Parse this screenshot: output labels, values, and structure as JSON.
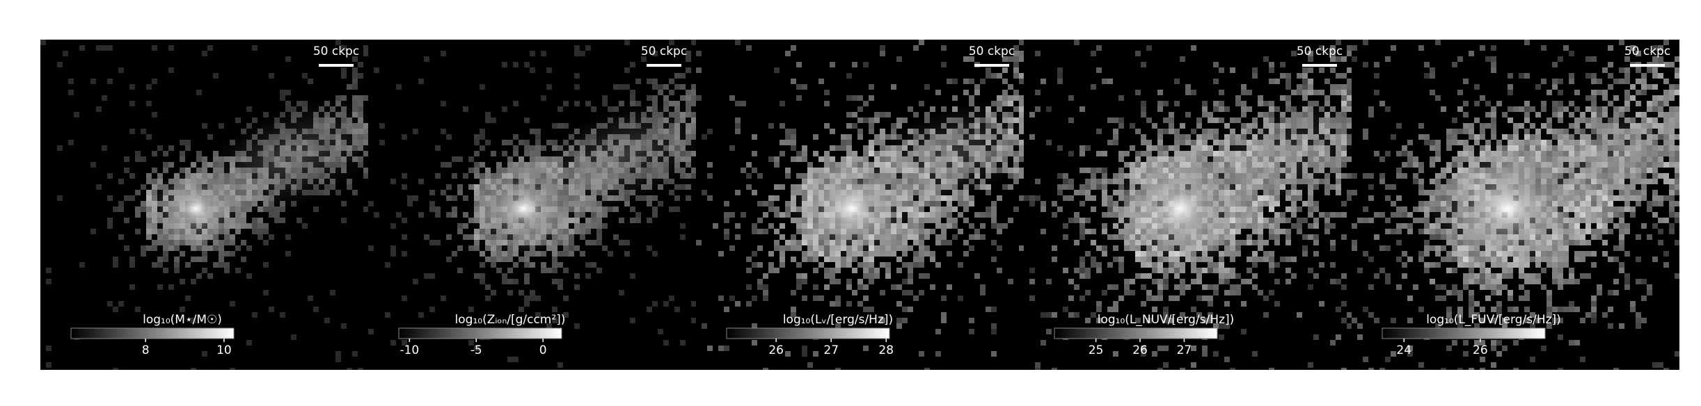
{
  "chart_data": [
    {
      "type": "image",
      "colormap": "gray",
      "scale_bar_label": "50 ckpc",
      "colorbar_label": "log₁₀(M⋆/M☉)",
      "clim": [
        6.1,
        10.25
      ],
      "ticks": [
        8,
        10
      ]
    },
    {
      "type": "image",
      "colormap": "gray",
      "scale_bar_label": "50 ckpc",
      "colorbar_label": "log₁₀(Zᵢₒₙ/[g/ccm²])",
      "clim": [
        -10.8,
        1.4
      ],
      "ticks": [
        -10,
        -5,
        0
      ]
    },
    {
      "type": "image",
      "colormap": "gray",
      "scale_bar_label": "50 ckpc",
      "colorbar_label": "log₁₀(Lᵥ/[erg/s/Hz])",
      "clim": [
        25.1,
        28.06
      ],
      "ticks": [
        26,
        27,
        28
      ]
    },
    {
      "type": "image",
      "colormap": "gray",
      "scale_bar_label": "50 ckpc",
      "colorbar_label": "log₁₀(L_NUV/[erg/s/Hz])",
      "clim": [
        24.06,
        27.75
      ],
      "ticks": [
        25,
        26,
        27
      ]
    },
    {
      "type": "image",
      "colormap": "gray",
      "scale_bar_label": "50 ckpc",
      "colorbar_label": "log₁₀(L_FUV/[erg/s/Hz])",
      "clim": [
        23.43,
        27.7
      ],
      "ticks": [
        24,
        26
      ]
    }
  ]
}
